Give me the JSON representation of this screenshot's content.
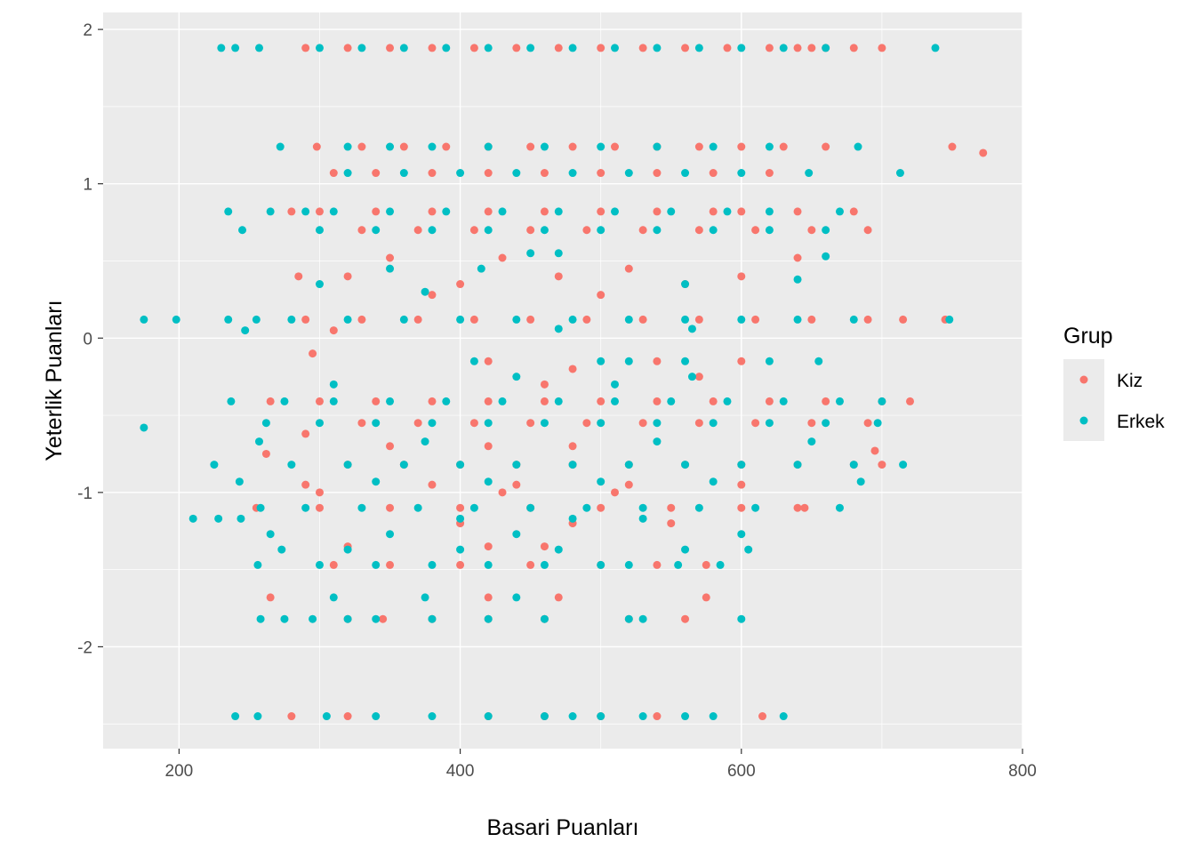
{
  "chart_data": {
    "type": "scatter",
    "title": "",
    "xlabel": "Basari Puanları",
    "ylabel": "Yeterlik Puanları",
    "xlim": [
      146,
      800
    ],
    "ylim": [
      -2.66,
      2.11
    ],
    "xticks": [
      200,
      400,
      600,
      800
    ],
    "yticks": [
      -2,
      -1,
      0,
      1,
      2
    ],
    "xtick_labels": [
      "200",
      "400",
      "600",
      "800"
    ],
    "ytick_labels": [
      "-2",
      "-1",
      "0",
      "1",
      "2"
    ],
    "grid": true,
    "legend": {
      "title": "Grup",
      "placement": "right"
    },
    "series": [
      {
        "name": "Kiz",
        "color": "#F8766D",
        "rows": [
          [
            1.88,
            [
              290,
              320,
              350,
              380,
              410,
              440,
              470,
              500,
              530,
              560,
              590,
              620,
              640,
              650,
              660,
              680,
              700
            ]
          ],
          [
            1.24,
            [
              298,
              330,
              360,
              390,
              420,
              450,
              480,
              510,
              540,
              570,
              600,
              630,
              660,
              750
            ]
          ],
          [
            1.2,
            [
              772
            ]
          ],
          [
            1.07,
            [
              310,
              340,
              380,
              420,
              460,
              500,
              540,
              580,
              620
            ]
          ],
          [
            0.82,
            [
              280,
              300,
              340,
              380,
              420,
              460,
              500,
              540,
              580,
              600,
              640,
              680
            ]
          ],
          [
            0.7,
            [
              330,
              370,
              410,
              450,
              490,
              530,
              570,
              610,
              650,
              690
            ]
          ],
          [
            0.4,
            [
              285,
              320,
              470,
              600
            ]
          ],
          [
            0.52,
            [
              350,
              430,
              640
            ]
          ],
          [
            0.35,
            [
              400,
              560
            ]
          ],
          [
            0.45,
            [
              520
            ]
          ],
          [
            0.28,
            [
              380,
              500
            ]
          ],
          [
            0.12,
            [
              290,
              330,
              370,
              410,
              450,
              490,
              530,
              570,
              610,
              650,
              690,
              715,
              745
            ]
          ],
          [
            0.05,
            [
              310
            ]
          ],
          [
            -0.1,
            [
              295
            ]
          ],
          [
            -0.15,
            [
              420,
              540,
              600
            ]
          ],
          [
            -0.2,
            [
              480
            ]
          ],
          [
            -0.25,
            [
              570
            ]
          ],
          [
            -0.3,
            [
              460
            ]
          ],
          [
            -0.41,
            [
              265,
              300,
              340,
              380,
              420,
              460,
              500,
              540,
              580,
              620,
              660,
              700,
              720
            ]
          ],
          [
            -0.55,
            [
              330,
              370,
              410,
              450,
              490,
              530,
              570,
              610,
              650,
              690
            ]
          ],
          [
            -0.62,
            [
              290
            ]
          ],
          [
            -0.7,
            [
              350,
              420,
              480
            ]
          ],
          [
            -0.73,
            [
              695
            ]
          ],
          [
            -0.75,
            [
              262
            ]
          ],
          [
            -0.82,
            [
              320,
              360,
              400,
              440,
              480,
              520,
              560,
              600,
              640,
              680,
              700
            ]
          ],
          [
            -0.95,
            [
              290,
              380,
              440,
              520,
              600
            ]
          ],
          [
            -1.0,
            [
              300,
              430,
              510
            ]
          ],
          [
            -1.1,
            [
              255,
              300,
              350,
              400,
              450,
              500,
              550,
              600,
              640,
              645
            ]
          ],
          [
            -1.2,
            [
              400,
              480,
              550
            ]
          ],
          [
            -1.35,
            [
              320,
              420,
              460
            ]
          ],
          [
            -1.47,
            [
              310,
              350,
              400,
              450,
              500,
              540,
              575
            ]
          ],
          [
            -1.68,
            [
              265,
              420,
              470,
              575
            ]
          ],
          [
            -1.82,
            [
              320,
              345,
              380,
              420,
              460,
              520,
              560
            ]
          ],
          [
            -2.45,
            [
              280,
              320,
              420,
              460,
              500,
              540,
              615
            ]
          ]
        ]
      },
      {
        "name": "Erkek",
        "color": "#00BFC4",
        "rows": [
          [
            1.88,
            [
              230,
              240,
              257,
              300,
              330,
              360,
              390,
              420,
              450,
              480,
              510,
              540,
              570,
              600,
              630,
              660,
              738
            ]
          ],
          [
            1.24,
            [
              272,
              320,
              350,
              380,
              420,
              460,
              500,
              540,
              580,
              620,
              683
            ]
          ],
          [
            1.07,
            [
              320,
              360,
              400,
              440,
              480,
              520,
              560,
              600,
              648,
              713
            ]
          ],
          [
            0.82,
            [
              235,
              265,
              290,
              310,
              350,
              390,
              430,
              470,
              510,
              550,
              590,
              620,
              670
            ]
          ],
          [
            0.7,
            [
              245,
              300,
              340,
              380,
              420,
              460,
              500,
              540,
              580,
              620,
              660
            ]
          ],
          [
            0.35,
            [
              300,
              560
            ]
          ],
          [
            0.45,
            [
              350,
              415
            ]
          ],
          [
            0.55,
            [
              450,
              470
            ]
          ],
          [
            0.38,
            [
              640
            ]
          ],
          [
            0.53,
            [
              660
            ]
          ],
          [
            0.3,
            [
              375
            ]
          ],
          [
            0.12,
            [
              175,
              198,
              235,
              255,
              280,
              320,
              360,
              400,
              440,
              480,
              520,
              560,
              600,
              640,
              680,
              748
            ]
          ],
          [
            0.05,
            [
              247
            ]
          ],
          [
            0.06,
            [
              470,
              565
            ]
          ],
          [
            -0.15,
            [
              410,
              500,
              520,
              560,
              620,
              655
            ]
          ],
          [
            -0.25,
            [
              440,
              565
            ]
          ],
          [
            -0.3,
            [
              310,
              510
            ]
          ],
          [
            -0.41,
            [
              237,
              275,
              310,
              350,
              390,
              430,
              470,
              510,
              550,
              590,
              630,
              670,
              700
            ]
          ],
          [
            -0.55,
            [
              262,
              300,
              340,
              380,
              420,
              460,
              500,
              540,
              580,
              620,
              660,
              697
            ]
          ],
          [
            -0.58,
            [
              175
            ]
          ],
          [
            -0.67,
            [
              257,
              375,
              540,
              650
            ]
          ],
          [
            -0.82,
            [
              225,
              280,
              320,
              360,
              400,
              440,
              480,
              520,
              560,
              600,
              640,
              680,
              715
            ]
          ],
          [
            -0.93,
            [
              243,
              340,
              420,
              500,
              580,
              685
            ]
          ],
          [
            -1.1,
            [
              258,
              290,
              330,
              370,
              410,
              450,
              490,
              530,
              570,
              610,
              670
            ]
          ],
          [
            -1.17,
            [
              210,
              228,
              244,
              400,
              480,
              530
            ]
          ],
          [
            -1.27,
            [
              265,
              350,
              440,
              600
            ]
          ],
          [
            -1.37,
            [
              273,
              320,
              400,
              470,
              560,
              605
            ]
          ],
          [
            -1.47,
            [
              256,
              300,
              340,
              380,
              420,
              460,
              500,
              520,
              555,
              585
            ]
          ],
          [
            -1.68,
            [
              310,
              375,
              440
            ]
          ],
          [
            -1.82,
            [
              258,
              275,
              295,
              320,
              340,
              380,
              420,
              460,
              520,
              530,
              600
            ]
          ],
          [
            -2.45,
            [
              240,
              256,
              305,
              340,
              380,
              420,
              460,
              480,
              500,
              530,
              560,
              580,
              630
            ]
          ]
        ]
      }
    ]
  }
}
